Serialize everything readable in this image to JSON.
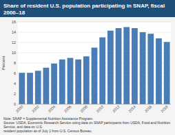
{
  "chart_data": {
    "type": "bar",
    "title": "Share of resident U.S. population participating in SNAP, fiscal 2000–18",
    "ylabel": "Percent",
    "categories": [
      "2000",
      null,
      "2002",
      null,
      "2004",
      null,
      "2006",
      null,
      "2008",
      null,
      "2010",
      null,
      "2012",
      null,
      "2014",
      null,
      "2016",
      null,
      "2018"
    ],
    "values": [
      6.1,
      6.1,
      6.5,
      7.1,
      7.9,
      8.7,
      9.0,
      8.7,
      9.3,
      11.0,
      13.0,
      14.3,
      14.8,
      15.0,
      14.8,
      14.0,
      13.7,
      12.8,
      12.1
    ],
    "color": "#4a7db5",
    "ylim": [
      0,
      16
    ],
    "yticks": [
      0,
      2,
      4,
      6,
      8,
      10,
      12,
      14,
      16
    ],
    "grid": true,
    "annotations": [
      "Note: SNAP = Supplemental Nutrition Assistance Program.",
      "Source: USDA, Economic Research Service using data on SNAP participants from USDA, Food and Nutrition Service, and data on U.S.",
      "resident population as of July 1 from U.S. Census Bureau."
    ]
  }
}
